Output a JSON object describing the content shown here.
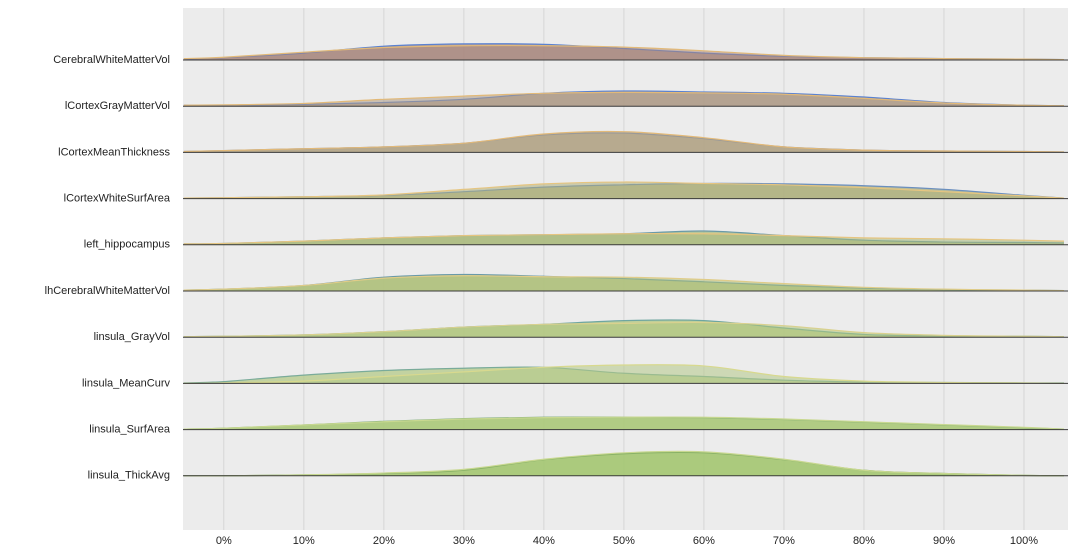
{
  "chart_data": {
    "type": "ridgeline",
    "x": [
      -5,
      0,
      10,
      20,
      30,
      40,
      50,
      60,
      70,
      80,
      90,
      100,
      105
    ],
    "xlim": [
      -5.1,
      105.5
    ],
    "xticks": [
      {
        "value": 0,
        "label": "0%"
      },
      {
        "value": 10,
        "label": "10%"
      },
      {
        "value": 20,
        "label": "20%"
      },
      {
        "value": 30,
        "label": "30%"
      },
      {
        "value": 40,
        "label": "40%"
      },
      {
        "value": 50,
        "label": "50%"
      },
      {
        "value": 60,
        "label": "60%"
      },
      {
        "value": 70,
        "label": "70%"
      },
      {
        "value": 80,
        "label": "80%"
      },
      {
        "value": 90,
        "label": "90%"
      },
      {
        "value": 100,
        "label": "100%"
      }
    ],
    "grid": true,
    "ridges": [
      {
        "label": "CerebralWhiteMatterVol",
        "color": "#a8867e",
        "series": [
          {
            "color": "#5b82d0",
            "values": [
              0.02,
              0.05,
              0.15,
              0.3,
              0.35,
              0.34,
              0.25,
              0.15,
              0.08,
              0.05,
              0.03,
              0.02,
              0.01
            ]
          },
          {
            "color": "#e2b978",
            "values": [
              0.03,
              0.06,
              0.17,
              0.27,
              0.31,
              0.31,
              0.28,
              0.2,
              0.1,
              0.05,
              0.03,
              0.02,
              0.01
            ]
          }
        ]
      },
      {
        "label": "lCortexGrayMatterVol",
        "color": "#ad9a86",
        "series": [
          {
            "color": "#5b82d0",
            "values": [
              0.02,
              0.02,
              0.04,
              0.08,
              0.15,
              0.28,
              0.33,
              0.31,
              0.28,
              0.2,
              0.08,
              0.02,
              0.01
            ]
          },
          {
            "color": "#e2b978",
            "values": [
              0.02,
              0.03,
              0.06,
              0.15,
              0.22,
              0.28,
              0.3,
              0.29,
              0.26,
              0.17,
              0.07,
              0.02,
              0.01
            ]
          }
        ]
      },
      {
        "label": "lCortexMeanThickness",
        "color": "#b0a284",
        "series": [
          {
            "color": "#7f8fb0",
            "values": [
              0.02,
              0.04,
              0.08,
              0.12,
              0.2,
              0.38,
              0.42,
              0.3,
              0.12,
              0.05,
              0.03,
              0.02,
              0.01
            ]
          },
          {
            "color": "#e2b978",
            "values": [
              0.02,
              0.04,
              0.08,
              0.12,
              0.2,
              0.4,
              0.45,
              0.32,
              0.12,
              0.05,
              0.03,
              0.02,
              0.01
            ]
          }
        ]
      },
      {
        "label": "lCortexWhiteSurfArea",
        "color": "#adaf7c",
        "series": [
          {
            "color": "#6b8fbf",
            "values": [
              0.01,
              0.02,
              0.04,
              0.07,
              0.15,
              0.25,
              0.3,
              0.33,
              0.32,
              0.28,
              0.2,
              0.07,
              0.01
            ]
          },
          {
            "color": "#e6c580",
            "values": [
              0.01,
              0.02,
              0.04,
              0.08,
              0.2,
              0.32,
              0.36,
              0.33,
              0.3,
              0.24,
              0.15,
              0.06,
              0.01
            ]
          }
        ]
      },
      {
        "label": "left_hippocampus",
        "color": "#a9b97c",
        "series": [
          {
            "color": "#6a9aa8",
            "values": [
              0.02,
              0.03,
              0.08,
              0.15,
              0.2,
              0.22,
              0.24,
              0.3,
              0.2,
              0.1,
              0.06,
              0.05,
              0.04
            ]
          },
          {
            "color": "#e6c580",
            "values": [
              0.02,
              0.03,
              0.08,
              0.15,
              0.2,
              0.22,
              0.24,
              0.24,
              0.2,
              0.15,
              0.13,
              0.1,
              0.08
            ]
          }
        ]
      },
      {
        "label": "lhCerebralWhiteMatterVol",
        "color": "#adc078",
        "series": [
          {
            "color": "#6a9aa8",
            "values": [
              0.02,
              0.04,
              0.12,
              0.3,
              0.36,
              0.32,
              0.27,
              0.2,
              0.12,
              0.06,
              0.03,
              0.02,
              0.01
            ]
          },
          {
            "color": "#e0cc88",
            "values": [
              0.02,
              0.04,
              0.12,
              0.28,
              0.33,
              0.31,
              0.3,
              0.25,
              0.16,
              0.08,
              0.04,
              0.02,
              0.01
            ]
          }
        ]
      },
      {
        "label": "linsula_GrayVol",
        "color": "#b0c67e",
        "series": [
          {
            "color": "#6fa6a0",
            "values": [
              0.01,
              0.02,
              0.05,
              0.12,
              0.22,
              0.28,
              0.36,
              0.36,
              0.2,
              0.06,
              0.03,
              0.02,
              0.01
            ]
          },
          {
            "color": "#d9d18e",
            "values": [
              0.01,
              0.02,
              0.05,
              0.12,
              0.22,
              0.28,
              0.3,
              0.32,
              0.25,
              0.1,
              0.04,
              0.02,
              0.01
            ]
          }
        ]
      },
      {
        "label": "linsula_MeanCurv",
        "color": "#b4c988",
        "series": [
          {
            "color": "#7aab9a",
            "values": [
              0.01,
              0.04,
              0.18,
              0.28,
              0.33,
              0.35,
              0.22,
              0.15,
              0.07,
              0.03,
              0.02,
              0.01,
              0.01
            ]
          },
          {
            "color": "#d8d98e",
            "values": [
              0,
              0.01,
              0.05,
              0.15,
              0.25,
              0.35,
              0.4,
              0.38,
              0.15,
              0.05,
              0.02,
              0.01,
              0
            ]
          }
        ]
      },
      {
        "label": "linsula_SurfArea",
        "color": "#a9c877",
        "series": [
          {
            "color": "#7aa878",
            "values": [
              0.01,
              0.03,
              0.1,
              0.18,
              0.24,
              0.27,
              0.27,
              0.26,
              0.22,
              0.16,
              0.1,
              0.04,
              0.01
            ]
          },
          {
            "color": "#c8d890",
            "values": [
              0.01,
              0.03,
              0.1,
              0.17,
              0.23,
              0.26,
              0.27,
              0.27,
              0.23,
              0.17,
              0.11,
              0.05,
              0.01
            ]
          }
        ]
      },
      {
        "label": "linsula_ThickAvg",
        "color": "#a3c670",
        "series": [
          {
            "color": "#6c9a5c",
            "values": [
              0,
              0,
              0.02,
              0.05,
              0.12,
              0.35,
              0.48,
              0.5,
              0.35,
              0.12,
              0.05,
              0.01,
              0
            ]
          },
          {
            "color": "#c8d890",
            "values": [
              0,
              0,
              0.02,
              0.06,
              0.14,
              0.36,
              0.5,
              0.52,
              0.36,
              0.12,
              0.05,
              0.01,
              0
            ]
          }
        ]
      }
    ]
  }
}
